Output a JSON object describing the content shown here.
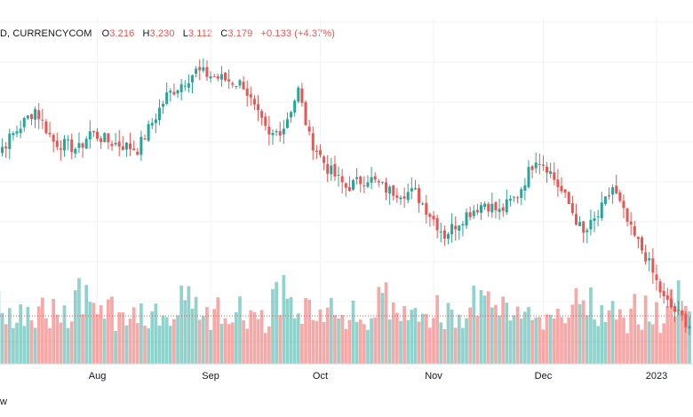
{
  "chart_data": {
    "type": "candlestick",
    "symbol_label": "D, CURRENCYCOM",
    "ohlc_labels": {
      "open_key": "O",
      "open": "3.216",
      "high_key": "H",
      "high": "3.230",
      "low_key": "L",
      "low": "3.112",
      "close_key": "C",
      "close": "3.179",
      "change": "+0.133 (+4.37%)"
    },
    "x_tick_labels": [
      "Aug",
      "Sep",
      "Oct",
      "Nov",
      "Dec",
      "2023"
    ],
    "x_tick_dates": [
      "2022-08-01",
      "2022-09-01",
      "2022-10-01",
      "2022-11-01",
      "2022-12-01",
      "2023-01-01"
    ],
    "date_range": [
      "2022-07-01",
      "2023-01-10"
    ],
    "ylim": [
      2.85,
      4.55
    ],
    "grid": true,
    "up_color": "#26a69a",
    "down_color": "#ef5350",
    "close_anchors": [
      {
        "date": "2022-07-01",
        "close": 3.76
      },
      {
        "date": "2022-07-10",
        "close": 3.96
      },
      {
        "date": "2022-07-15",
        "close": 4.07
      },
      {
        "date": "2022-07-20",
        "close": 3.9
      },
      {
        "date": "2022-07-27",
        "close": 3.86
      },
      {
        "date": "2022-07-30",
        "close": 3.95
      },
      {
        "date": "2022-08-04",
        "close": 3.9
      },
      {
        "date": "2022-08-12",
        "close": 3.86
      },
      {
        "date": "2022-08-20",
        "close": 4.14
      },
      {
        "date": "2022-08-28",
        "close": 4.27
      },
      {
        "date": "2022-09-02",
        "close": 4.24
      },
      {
        "date": "2022-09-10",
        "close": 4.2
      },
      {
        "date": "2022-09-13",
        "close": 4.07
      },
      {
        "date": "2022-09-17",
        "close": 3.92
      },
      {
        "date": "2022-09-21",
        "close": 3.98
      },
      {
        "date": "2022-09-25",
        "close": 4.17
      },
      {
        "date": "2022-09-28",
        "close": 3.92
      },
      {
        "date": "2022-10-03",
        "close": 3.76
      },
      {
        "date": "2022-10-08",
        "close": 3.66
      },
      {
        "date": "2022-10-14",
        "close": 3.71
      },
      {
        "date": "2022-10-20",
        "close": 3.64
      },
      {
        "date": "2022-10-27",
        "close": 3.63
      },
      {
        "date": "2022-11-04",
        "close": 3.41
      },
      {
        "date": "2022-11-10",
        "close": 3.52
      },
      {
        "date": "2022-11-15",
        "close": 3.58
      },
      {
        "date": "2022-11-19",
        "close": 3.53
      },
      {
        "date": "2022-11-24",
        "close": 3.62
      },
      {
        "date": "2022-11-29",
        "close": 3.82
      },
      {
        "date": "2022-12-02",
        "close": 3.77
      },
      {
        "date": "2022-12-08",
        "close": 3.57
      },
      {
        "date": "2022-12-12",
        "close": 3.41
      },
      {
        "date": "2022-12-16",
        "close": 3.51
      },
      {
        "date": "2022-12-20",
        "close": 3.66
      },
      {
        "date": "2022-12-25",
        "close": 3.43
      },
      {
        "date": "2022-12-29",
        "close": 3.3
      },
      {
        "date": "2023-01-03",
        "close": 3.07
      },
      {
        "date": "2023-01-07",
        "close": 2.99
      },
      {
        "date": "2023-01-10",
        "close": 2.94
      }
    ],
    "volume_pattern": [
      0.62,
      0.47,
      0.55,
      0.38,
      0.52,
      0.34,
      0.33,
      0.41,
      0.29,
      0.36,
      0.44,
      0.31,
      0.4,
      0.35,
      0.27,
      0.38,
      0.51,
      0.32,
      0.28,
      0.47,
      0.36,
      0.3,
      0.43,
      0.25,
      0.33,
      0.49,
      0.58,
      0.39,
      0.62,
      0.45,
      0.51,
      0.37,
      0.42,
      0.34,
      0.55,
      0.48,
      0.29,
      0.36,
      0.41,
      0.3,
      0.38,
      0.46,
      0.33,
      0.4,
      0.32,
      0.28,
      0.36,
      0.43,
      0.31,
      0.37,
      0.35,
      0.27,
      0.34,
      0.39
    ],
    "volume_average": 0.36
  },
  "footer_text": "w"
}
